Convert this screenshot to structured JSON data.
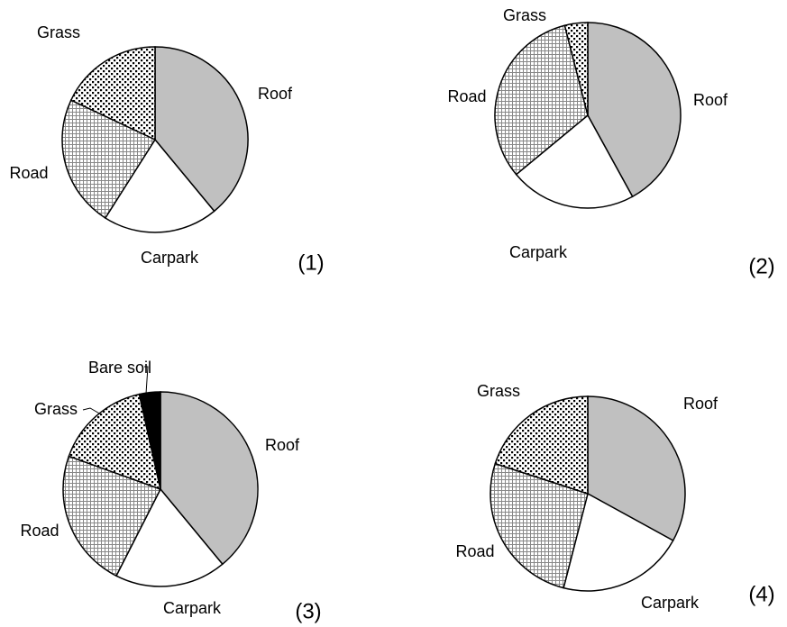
{
  "chart_data": [
    {
      "type": "pie",
      "label": "(1)",
      "categories": [
        "Roof",
        "Carpark",
        "Road",
        "Grass"
      ],
      "values": [
        39,
        20,
        23,
        18
      ],
      "fills": [
        "gray",
        "white",
        "grid",
        "dots"
      ]
    },
    {
      "type": "pie",
      "label": "(2)",
      "categories": [
        "Roof",
        "Carpark",
        "Road",
        "Grass"
      ],
      "values": [
        42,
        22,
        32,
        4
      ],
      "fills": [
        "gray",
        "white",
        "grid",
        "dots"
      ]
    },
    {
      "type": "pie",
      "label": "(3)",
      "categories": [
        "Roof",
        "Carpark",
        "Road",
        "Grass",
        "Bare soil"
      ],
      "values": [
        39,
        18.5,
        23,
        16,
        3.5
      ],
      "fills": [
        "gray",
        "white",
        "grid",
        "dots",
        "black"
      ]
    },
    {
      "type": "pie",
      "label": "(4)",
      "categories": [
        "Roof",
        "Carpark",
        "Road",
        "Grass"
      ],
      "values": [
        33,
        21,
        26,
        20
      ],
      "fills": [
        "gray",
        "white",
        "grid",
        "dots"
      ]
    }
  ]
}
